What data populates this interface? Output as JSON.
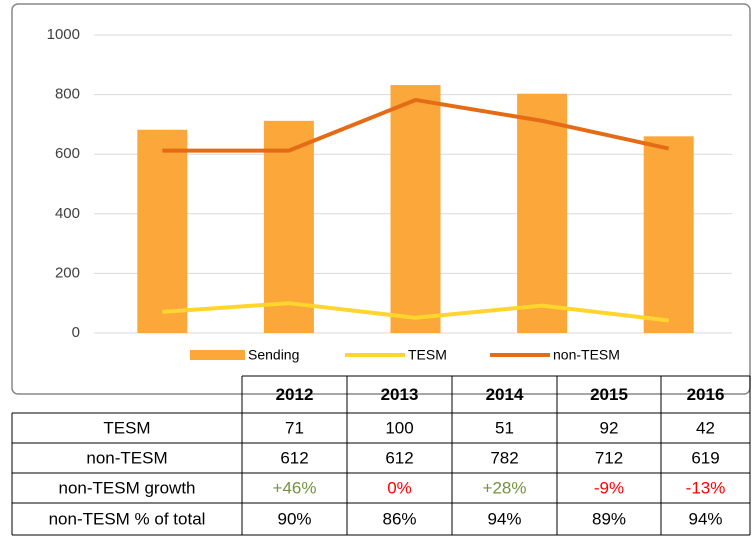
{
  "chart_data": {
    "type": "bar",
    "categories": [
      null,
      null,
      null,
      null,
      null
    ],
    "series": [
      {
        "name": "Sending",
        "type": "bar",
        "color": "#fba73a",
        "values": [
          682,
          712,
          832,
          803,
          660
        ]
      },
      {
        "name": "TESM",
        "type": "line",
        "color": "#ffd52e",
        "values": [
          71,
          100,
          51,
          92,
          42
        ]
      },
      {
        "name": "non-TESM",
        "type": "line",
        "color": "#e46c16",
        "values": [
          612,
          612,
          782,
          712,
          619
        ]
      }
    ],
    "ylim": [
      0,
      1000
    ],
    "yticks": [
      0,
      200,
      400,
      600,
      800,
      1000
    ],
    "grid": true,
    "legend": "bottom"
  },
  "table": {
    "header": [
      "2012",
      "2013",
      "2014",
      "2015",
      "2016"
    ],
    "rows": [
      {
        "label": "TESM",
        "cells": [
          {
            "text": "71"
          },
          {
            "text": "100"
          },
          {
            "text": "51"
          },
          {
            "text": "92"
          },
          {
            "text": "42"
          }
        ]
      },
      {
        "label": "non-TESM",
        "cells": [
          {
            "text": "612"
          },
          {
            "text": "612"
          },
          {
            "text": "782"
          },
          {
            "text": "712"
          },
          {
            "text": "619"
          }
        ]
      },
      {
        "label": "non-TESM growth",
        "cells": [
          {
            "text": "+46%",
            "color": "#76923c"
          },
          {
            "text": "0%",
            "color": "#ff0000"
          },
          {
            "text": "+28%",
            "color": "#76923c"
          },
          {
            "text": "-9%",
            "color": "#ff0000"
          },
          {
            "text": "-13%",
            "color": "#ff0000"
          }
        ]
      },
      {
        "label": "non-TESM % of total",
        "cells": [
          {
            "text": "90%"
          },
          {
            "text": "86%"
          },
          {
            "text": "94%"
          },
          {
            "text": "89%"
          },
          {
            "text": "94%"
          }
        ]
      }
    ]
  }
}
